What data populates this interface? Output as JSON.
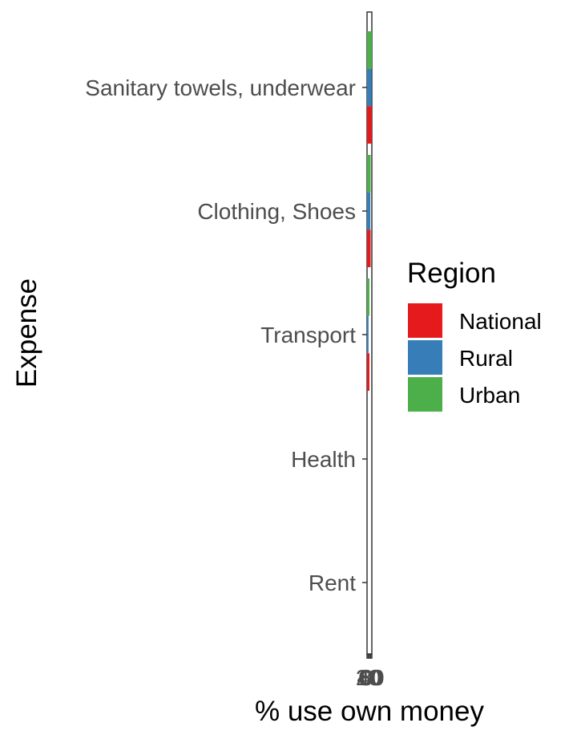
{
  "chart_data": {
    "type": "bar",
    "orientation": "horizontal",
    "title": "",
    "xlabel": "% use own money",
    "ylabel": "Expense",
    "categories": [
      "Sanitary towels, underwear",
      "Clothing, Shoes",
      "Transport",
      "Health",
      "Rent"
    ],
    "series": [
      {
        "name": "National",
        "color": "#e41a1c",
        "values": [
          80,
          60,
          40,
          0,
          0
        ]
      },
      {
        "name": "Rural",
        "color": "#377eb8",
        "values": [
          75,
          55,
          25,
          0,
          0
        ]
      },
      {
        "name": "Urban",
        "color": "#4daf4a",
        "values": [
          80,
          60,
          40,
          0,
          0
        ]
      }
    ],
    "xlim": [
      0,
      80
    ],
    "xticks": [
      0,
      20,
      40,
      60,
      80
    ],
    "xtick_labels": [
      "0",
      "20",
      "40",
      "60",
      "80"
    ],
    "legend": {
      "title": "Region",
      "placement": "right"
    },
    "grid": false
  }
}
